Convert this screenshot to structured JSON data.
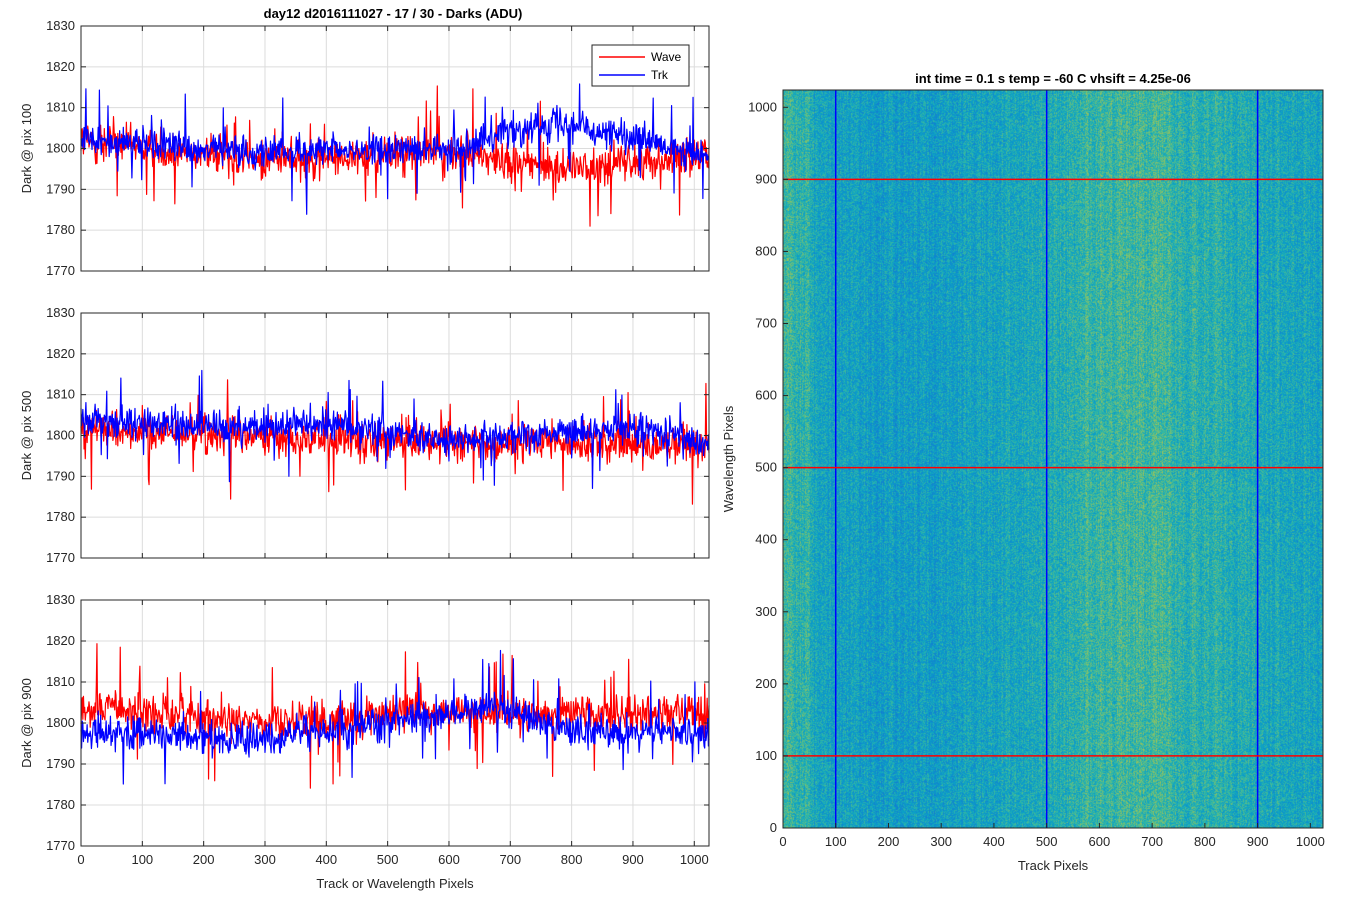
{
  "figure_title": "day12 d2016111027 - 17 / 30 - Darks (ADU)",
  "colors": {
    "wave": "#ff0000",
    "trk": "#0000ff",
    "grid": "#dcdcdc",
    "axis": "#262626"
  },
  "legend": {
    "wave": "Wave",
    "trk": "Trk",
    "placement": "top-right"
  },
  "chart_data": [
    {
      "type": "line",
      "ylabel": "Dark @ pix 100",
      "xlabel": "",
      "xlim": [
        0,
        1024
      ],
      "ylim": [
        1770,
        1830
      ],
      "xticks": [
        0,
        100,
        200,
        300,
        400,
        500,
        600,
        700,
        800,
        900,
        1000
      ],
      "yticks": [
        1770,
        1780,
        1790,
        1800,
        1810,
        1820,
        1830
      ],
      "show_x_tick_labels": false,
      "grid": true,
      "series": [
        {
          "name": "Wave",
          "color": "#ff0000",
          "mean": 1799,
          "amp": 6,
          "drift": [
            [
              0,
              3
            ],
            [
              300,
              -2
            ],
            [
              600,
              0
            ],
            [
              800,
              -4
            ],
            [
              1024,
              0
            ]
          ]
        },
        {
          "name": "Trk",
          "color": "#0000ff",
          "mean": 1800,
          "amp": 5,
          "drift": [
            [
              0,
              2
            ],
            [
              300,
              -1
            ],
            [
              600,
              0
            ],
            [
              780,
              7
            ],
            [
              900,
              2
            ],
            [
              1024,
              -2
            ]
          ]
        }
      ]
    },
    {
      "type": "line",
      "ylabel": "Dark @ pix 500",
      "xlabel": "",
      "xlim": [
        0,
        1024
      ],
      "ylim": [
        1770,
        1830
      ],
      "xticks": [
        0,
        100,
        200,
        300,
        400,
        500,
        600,
        700,
        800,
        900,
        1000
      ],
      "yticks": [
        1770,
        1780,
        1790,
        1800,
        1810,
        1820,
        1830
      ],
      "show_x_tick_labels": false,
      "grid": true,
      "series": [
        {
          "name": "Wave",
          "color": "#ff0000",
          "mean": 1799,
          "amp": 6,
          "drift": [
            [
              0,
              3
            ],
            [
              400,
              0
            ],
            [
              700,
              -1
            ],
            [
              1024,
              -1
            ]
          ]
        },
        {
          "name": "Trk",
          "color": "#0000ff",
          "mean": 1800,
          "amp": 5,
          "drift": [
            [
              0,
              4
            ],
            [
              200,
              2
            ],
            [
              400,
              3
            ],
            [
              600,
              -1
            ],
            [
              900,
              2
            ],
            [
              1024,
              -2
            ]
          ]
        }
      ]
    },
    {
      "type": "line",
      "ylabel": "Dark @ pix 900",
      "xlabel": "Track or Wavelength Pixels",
      "xlim": [
        0,
        1024
      ],
      "ylim": [
        1770,
        1830
      ],
      "xticks": [
        0,
        100,
        200,
        300,
        400,
        500,
        600,
        700,
        800,
        900,
        1000
      ],
      "yticks": [
        1770,
        1780,
        1790,
        1800,
        1810,
        1820,
        1830
      ],
      "show_x_tick_labels": true,
      "grid": true,
      "series": [
        {
          "name": "Wave",
          "color": "#ff0000",
          "mean": 1801,
          "amp": 6,
          "drift": [
            [
              0,
              3
            ],
            [
              300,
              -1
            ],
            [
              600,
              2
            ],
            [
              1024,
              1
            ]
          ]
        },
        {
          "name": "Trk",
          "color": "#0000ff",
          "mean": 1798,
          "amp": 5,
          "drift": [
            [
              0,
              0
            ],
            [
              300,
              -2
            ],
            [
              680,
              6
            ],
            [
              800,
              0
            ],
            [
              1024,
              -1
            ]
          ]
        }
      ]
    },
    {
      "type": "heatmap",
      "title": "int time = 0.1 s   temp = -60 C   vhsift = 4.25e-06",
      "xlabel": "Track Pixels",
      "ylabel": "Wavelength Pixels",
      "xlim": [
        0,
        1024
      ],
      "ylim": [
        0,
        1024
      ],
      "xticks": [
        0,
        100,
        200,
        300,
        400,
        500,
        600,
        700,
        800,
        900,
        1000
      ],
      "yticks": [
        0,
        100,
        200,
        300,
        400,
        500,
        600,
        700,
        800,
        900,
        1000
      ],
      "vertical_markers": {
        "x": [
          100,
          500,
          900
        ],
        "color": "#0000ff"
      },
      "horizontal_markers": {
        "y": [
          100,
          500,
          900
        ],
        "color": "#ff0000"
      },
      "colormap": "parula"
    }
  ]
}
